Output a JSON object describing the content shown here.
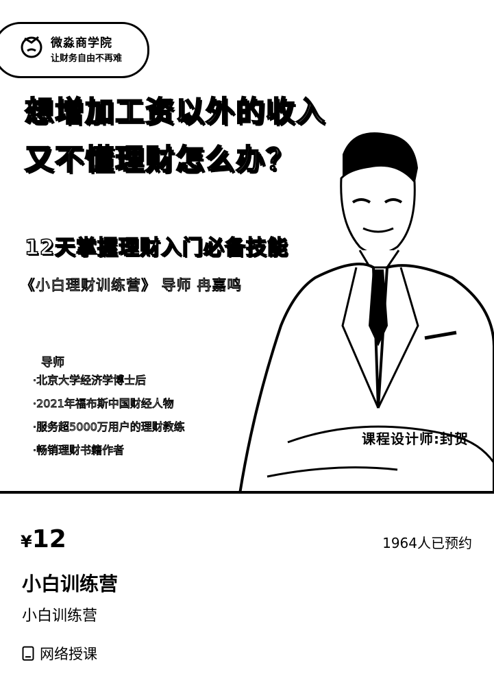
{
  "banner": {
    "brand": {
      "name": "微淼商学院",
      "slogan": "让财务自由不再难"
    },
    "headline": [
      "想增加工资以外的收入",
      "又不懂理财怎么办？"
    ],
    "subhead": "12天掌握理财入门必备技能",
    "camp_line": "《小白理财训练营》 导师 冉嘉鸣",
    "bio": {
      "title": "导师",
      "items": [
        "·北京大学经济学博士后",
        "·2021年福布斯中国财经人物",
        "·服务超5000万用户的理财教练",
        "·畅销理财书籍作者"
      ]
    },
    "designer": "课程设计师:封贺"
  },
  "info": {
    "currency": "¥",
    "price": "12",
    "booked": "1964人已预约",
    "title": "小白训练营",
    "subtitle": "小白训练营",
    "mode": "网络授课"
  }
}
